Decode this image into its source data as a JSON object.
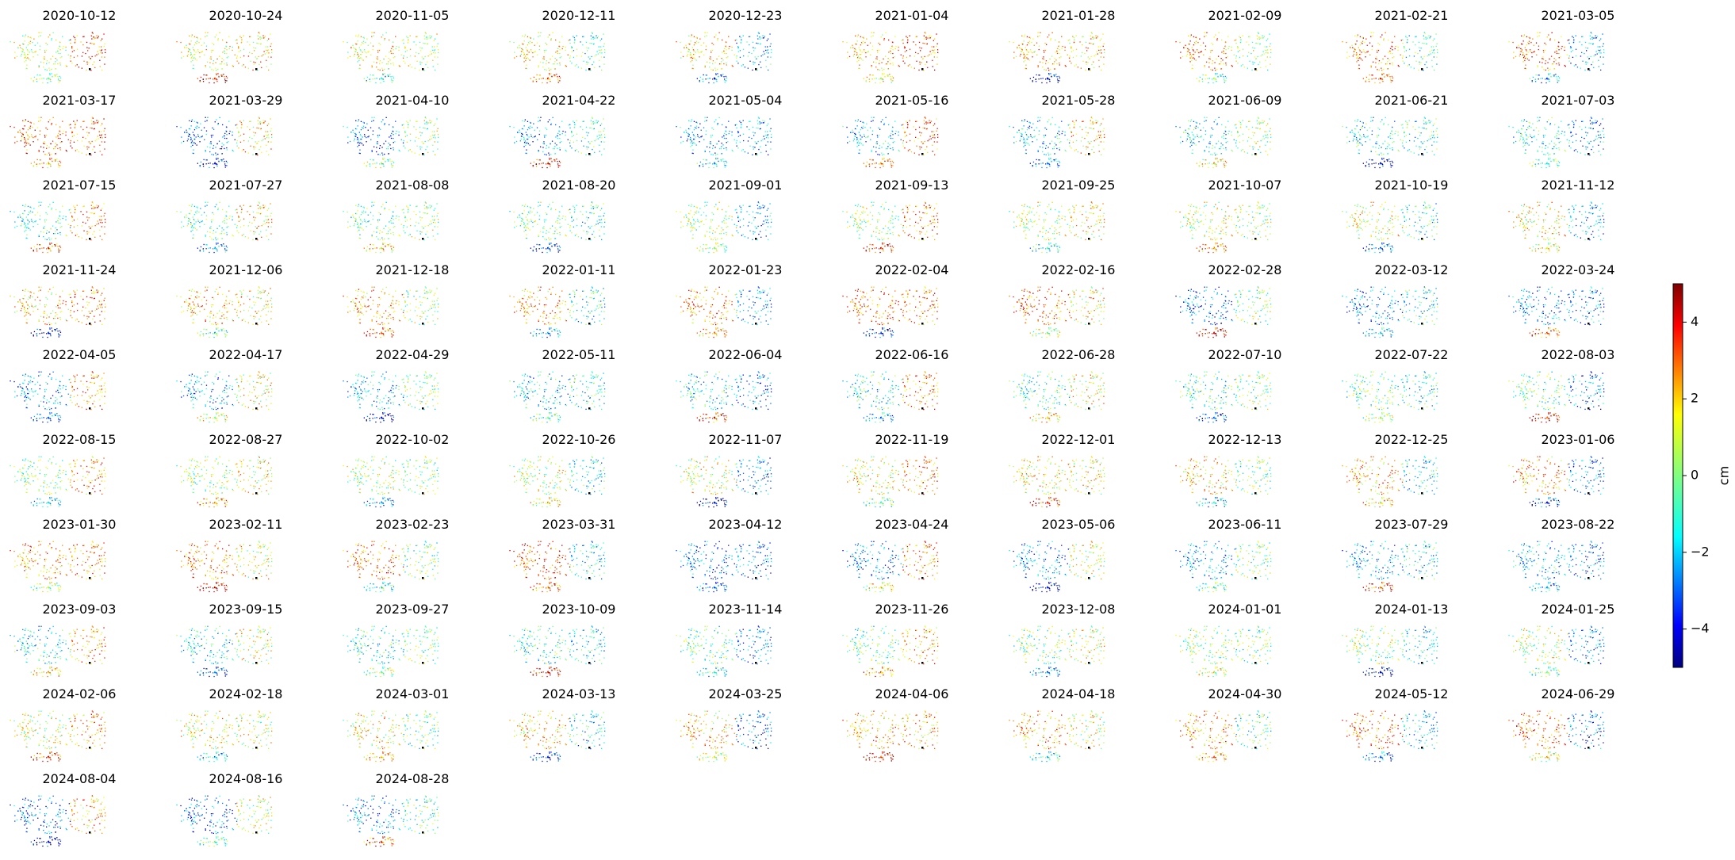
{
  "chart_data": {
    "type": "scatter",
    "dates": [
      "2020-10-12",
      "2020-10-24",
      "2020-11-05",
      "2020-12-11",
      "2020-12-23",
      "2021-01-04",
      "2021-01-28",
      "2021-02-09",
      "2021-02-21",
      "2021-03-05",
      "2021-03-17",
      "2021-03-29",
      "2021-04-10",
      "2021-04-22",
      "2021-05-04",
      "2021-05-16",
      "2021-05-28",
      "2021-06-09",
      "2021-06-21",
      "2021-07-03",
      "2021-07-15",
      "2021-07-27",
      "2021-08-08",
      "2021-08-20",
      "2021-09-01",
      "2021-09-13",
      "2021-09-25",
      "2021-10-07",
      "2021-10-19",
      "2021-11-12",
      "2021-11-24",
      "2021-12-06",
      "2021-12-18",
      "2022-01-11",
      "2022-01-23",
      "2022-02-04",
      "2022-02-16",
      "2022-02-28",
      "2022-03-12",
      "2022-03-24",
      "2022-04-05",
      "2022-04-17",
      "2022-04-29",
      "2022-05-11",
      "2022-06-04",
      "2022-06-16",
      "2022-06-28",
      "2022-07-10",
      "2022-07-22",
      "2022-08-03",
      "2022-08-15",
      "2022-08-27",
      "2022-10-02",
      "2022-10-26",
      "2022-11-07",
      "2022-11-19",
      "2022-12-01",
      "2022-12-13",
      "2022-12-25",
      "2023-01-06",
      "2023-01-30",
      "2023-02-11",
      "2023-02-23",
      "2023-03-31",
      "2023-04-12",
      "2023-04-24",
      "2023-05-06",
      "2023-06-11",
      "2023-07-29",
      "2023-08-22",
      "2023-09-03",
      "2023-09-15",
      "2023-09-27",
      "2023-10-09",
      "2023-11-14",
      "2023-11-26",
      "2023-12-08",
      "2024-01-01",
      "2024-01-13",
      "2024-01-25",
      "2024-02-06",
      "2024-02-18",
      "2024-03-01",
      "2024-03-13",
      "2024-03-25",
      "2024-04-06",
      "2024-04-18",
      "2024-04-30",
      "2024-05-12",
      "2024-06-29",
      "2024-08-04",
      "2024-08-16",
      "2024-08-28"
    ],
    "colorbar": {
      "label": "cm",
      "range": [
        -5,
        5
      ],
      "ticks": [
        -4,
        -2,
        0,
        2,
        4
      ],
      "tick_labels": [
        "−4",
        "−2",
        "0",
        "2",
        "4"
      ],
      "colormap": "jet"
    }
  }
}
